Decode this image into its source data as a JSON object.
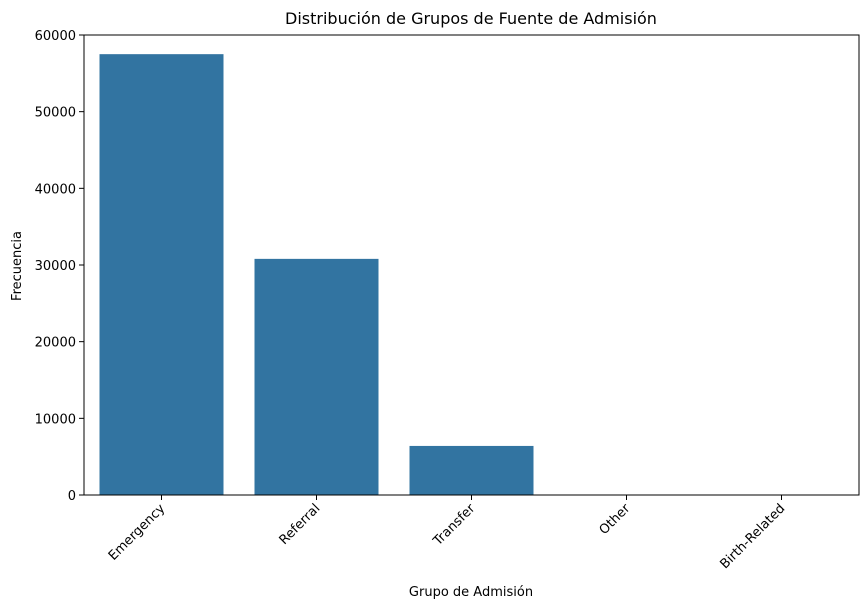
{
  "chart_data": {
    "type": "bar",
    "title": "Distribución de Grupos de Fuente de Admisión",
    "xlabel": "Grupo de Admisión",
    "ylabel": "Frecuencia",
    "categories": [
      "Emergency",
      "Referral",
      "Transfer",
      "Other",
      "Birth-Related"
    ],
    "values": [
      57500,
      30800,
      6400,
      30,
      10
    ],
    "ylim": [
      0,
      60000
    ],
    "yticks": [
      0,
      10000,
      20000,
      30000,
      40000,
      50000,
      60000
    ],
    "x_tick_rotation_deg": 45,
    "bar_color": "#3274a1",
    "grid": false,
    "legend": "none"
  }
}
